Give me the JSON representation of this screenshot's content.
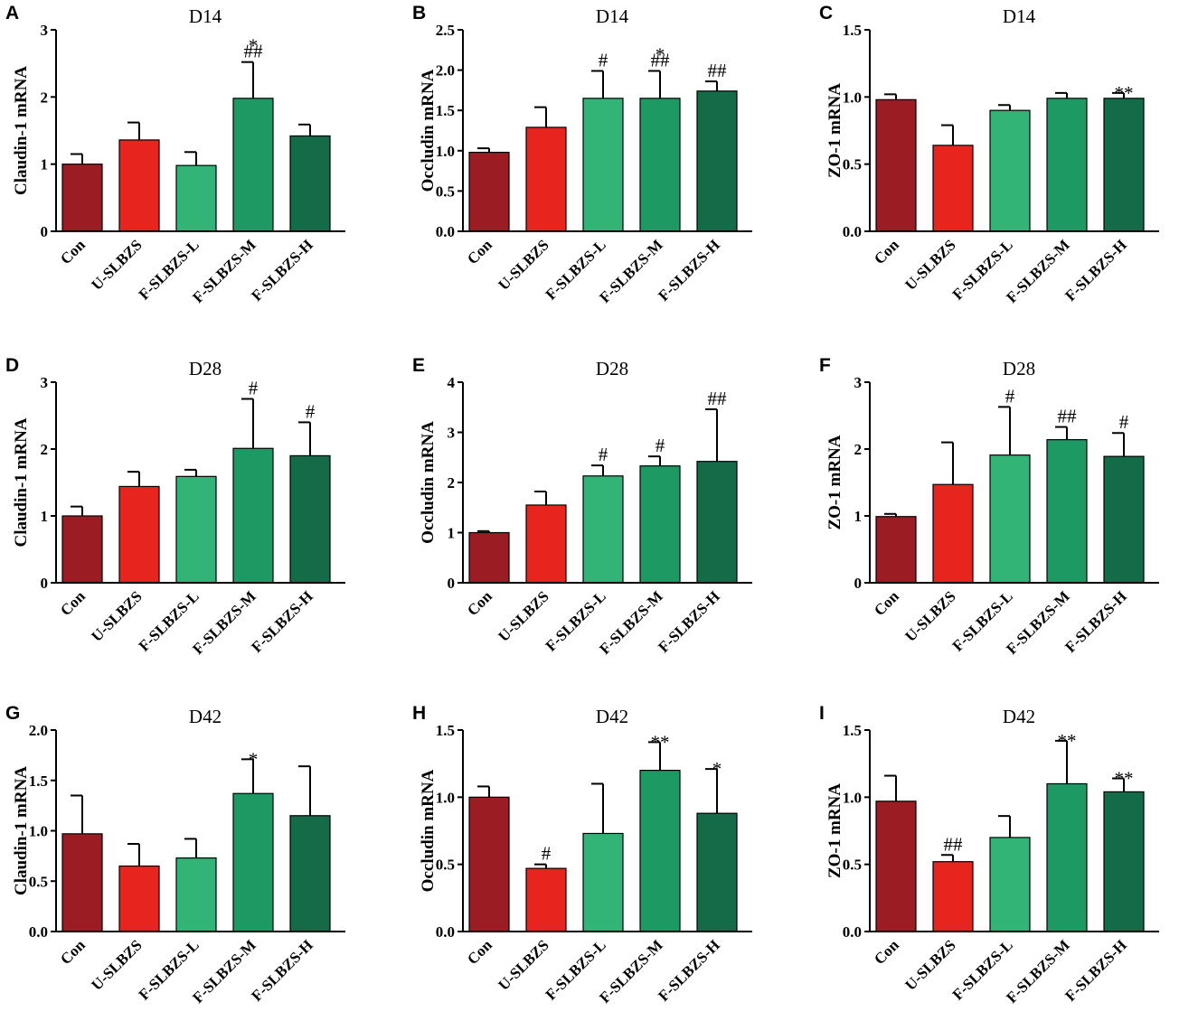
{
  "figure": {
    "colors": [
      "#9b1c23",
      "#e8241f",
      "#33b477",
      "#1d9a63",
      "#136b48"
    ]
  },
  "chart_data": [
    {
      "type": "bar",
      "panel": "A",
      "title": "D14",
      "ylabel": "Claudin-1 mRNA",
      "categories": [
        "Con",
        "U-SLBZS",
        "F-SLBZS-L",
        "F-SLBZS-M",
        "F-SLBZS-H"
      ],
      "values": [
        1.0,
        1.36,
        0.98,
        1.98,
        1.42
      ],
      "errors": [
        0.15,
        0.26,
        0.2,
        0.54,
        0.17
      ],
      "annotations": [
        "",
        "",
        "",
        "*\n##",
        ""
      ],
      "ylim": [
        0,
        3
      ],
      "yticks": [
        "0",
        "1",
        "2",
        "3"
      ]
    },
    {
      "type": "bar",
      "panel": "B",
      "title": "D14",
      "ylabel": "Occludin mRNA",
      "categories": [
        "Con",
        "U-SLBZS",
        "F-SLBZS-L",
        "F-SLBZS-M",
        "F-SLBZS-H"
      ],
      "values": [
        0.98,
        1.29,
        1.65,
        1.65,
        1.74
      ],
      "errors": [
        0.05,
        0.25,
        0.34,
        0.34,
        0.12
      ],
      "annotations": [
        "",
        "",
        "#",
        "*\n##",
        "##"
      ],
      "ylim": [
        0,
        2.5
      ],
      "yticks": [
        "0.0",
        "0.5",
        "1.0",
        "1.5",
        "2.0",
        "2.5"
      ]
    },
    {
      "type": "bar",
      "panel": "C",
      "title": "D14",
      "ylabel": "ZO-1 mRNA",
      "categories": [
        "Con",
        "U-SLBZS",
        "F-SLBZS-L",
        "F-SLBZS-M",
        "F-SLBZS-H"
      ],
      "values": [
        0.98,
        0.64,
        0.9,
        0.99,
        0.99
      ],
      "errors": [
        0.04,
        0.15,
        0.04,
        0.04,
        0.04
      ],
      "annotations": [
        "",
        "",
        "",
        "",
        "**"
      ],
      "ylim": [
        0,
        1.5
      ],
      "yticks": [
        "0.0",
        "0.5",
        "1.0",
        "1.5"
      ]
    },
    {
      "type": "bar",
      "panel": "D",
      "title": "D28",
      "ylabel": "Claudin-1 mRNA",
      "categories": [
        "Con",
        "U-SLBZS",
        "F-SLBZS-L",
        "F-SLBZS-M",
        "F-SLBZS-H"
      ],
      "values": [
        1.0,
        1.44,
        1.59,
        2.01,
        1.9
      ],
      "errors": [
        0.14,
        0.22,
        0.1,
        0.74,
        0.5
      ],
      "annotations": [
        "",
        "",
        "",
        "#",
        "#"
      ],
      "ylim": [
        0,
        3
      ],
      "yticks": [
        "0",
        "1",
        "2",
        "3"
      ]
    },
    {
      "type": "bar",
      "panel": "E",
      "title": "D28",
      "ylabel": "Occludin mRNA",
      "categories": [
        "Con",
        "U-SLBZS",
        "F-SLBZS-L",
        "F-SLBZS-M",
        "F-SLBZS-H"
      ],
      "values": [
        1.0,
        1.55,
        2.13,
        2.33,
        2.42
      ],
      "errors": [
        0.03,
        0.27,
        0.21,
        0.19,
        1.04
      ],
      "annotations": [
        "",
        "",
        "#",
        "#",
        "##"
      ],
      "ylim": [
        0,
        4
      ],
      "yticks": [
        "0",
        "1",
        "2",
        "3",
        "4"
      ]
    },
    {
      "type": "bar",
      "panel": "F",
      "title": "D28",
      "ylabel": "ZO-1 mRNA",
      "categories": [
        "Con",
        "U-SLBZS",
        "F-SLBZS-L",
        "F-SLBZS-M",
        "F-SLBZS-H"
      ],
      "values": [
        0.99,
        1.47,
        1.91,
        2.14,
        1.89
      ],
      "errors": [
        0.04,
        0.63,
        0.72,
        0.19,
        0.35
      ],
      "annotations": [
        "",
        "",
        "#",
        "##",
        "#"
      ],
      "ylim": [
        0,
        3
      ],
      "yticks": [
        "0",
        "1",
        "2",
        "3"
      ]
    },
    {
      "type": "bar",
      "panel": "G",
      "title": "D42",
      "ylabel": "Claudin-1 mRNA",
      "categories": [
        "Con",
        "U-SLBZS",
        "F-SLBZS-L",
        "F-SLBZS-M",
        "F-SLBZS-H"
      ],
      "values": [
        0.97,
        0.65,
        0.73,
        1.37,
        1.15
      ],
      "errors": [
        0.38,
        0.22,
        0.19,
        0.34,
        0.49
      ],
      "annotations": [
        "",
        "",
        "",
        "*",
        ""
      ],
      "ylim": [
        0,
        2.0
      ],
      "yticks": [
        "0.0",
        "0.5",
        "1.0",
        "1.5",
        "2.0"
      ]
    },
    {
      "type": "bar",
      "panel": "H",
      "title": "D42",
      "ylabel": "Occludin mRNA",
      "categories": [
        "Con",
        "U-SLBZS",
        "F-SLBZS-L",
        "F-SLBZS-M",
        "F-SLBZS-H"
      ],
      "values": [
        1.0,
        0.47,
        0.73,
        1.2,
        0.88
      ],
      "errors": [
        0.08,
        0.03,
        0.37,
        0.21,
        0.33
      ],
      "annotations": [
        "",
        "#",
        "",
        "**",
        "*"
      ],
      "ylim": [
        0,
        1.5
      ],
      "yticks": [
        "0.0",
        "0.5",
        "1.0",
        "1.5"
      ]
    },
    {
      "type": "bar",
      "panel": "I",
      "title": "D42",
      "ylabel": "ZO-1 mRNA",
      "categories": [
        "Con",
        "U-SLBZS",
        "F-SLBZS-L",
        "F-SLBZS-M",
        "F-SLBZS-H"
      ],
      "values": [
        0.97,
        0.52,
        0.7,
        1.1,
        1.04
      ],
      "errors": [
        0.19,
        0.05,
        0.16,
        0.32,
        0.1
      ],
      "annotations": [
        "",
        "##",
        "",
        "**",
        "**"
      ],
      "ylim": [
        0,
        1.5
      ],
      "yticks": [
        "0.0",
        "0.5",
        "1.0",
        "1.5"
      ]
    }
  ]
}
